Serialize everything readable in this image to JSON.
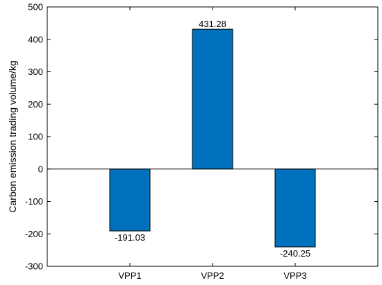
{
  "chart_data": {
    "type": "bar",
    "categories": [
      "VPP1",
      "VPP2",
      "VPP3"
    ],
    "values": [
      -191.03,
      431.28,
      -240.25
    ],
    "data_labels": [
      "-191.03",
      "431.28",
      "-240.25"
    ],
    "title": "",
    "xlabel": "",
    "ylabel": "Carbon emission trading volume/kg",
    "ylim": [
      -300,
      500
    ],
    "yticks": [
      -300,
      -200,
      -100,
      0,
      100,
      200,
      300,
      400,
      500
    ],
    "xlim": [
      0,
      4
    ],
    "grid": false,
    "legend": "none",
    "bar_color": "#0072BD",
    "bar_edge_color": "#000000",
    "axis_color": "#000000"
  }
}
